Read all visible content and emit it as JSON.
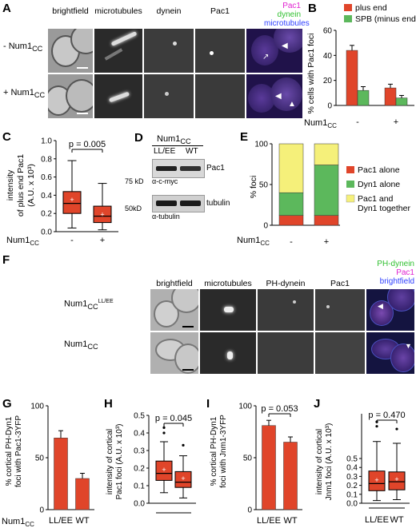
{
  "panelA": {
    "label": "A",
    "columns": [
      "brightfield",
      "microtubules",
      "dynein",
      "Pac1"
    ],
    "merge_labels": [
      "Pac1",
      "dynein",
      "microtubules"
    ],
    "rows": [
      "- Num1",
      "+ Num1"
    ],
    "row_sub": "CC",
    "colors": {
      "pac1": "#e020d0",
      "dynein": "#30c030",
      "microtubules": "#3040ff"
    }
  },
  "panelB": {
    "label": "B",
    "legend": [
      "plus end",
      "SPB (minus end)"
    ],
    "ylabel": "% cells with Pac1 foci",
    "xvar": "Num1",
    "xvar_sub": "CC",
    "xticks": [
      "-",
      "+"
    ],
    "yticks": [
      "0",
      "20",
      "40",
      "60"
    ]
  },
  "panelC": {
    "label": "C",
    "ylabel_lines": [
      "intensity",
      "of plus end Pac1",
      "(A.U. x 10³)"
    ],
    "pvalue": "p = 0.005",
    "xvar": "Num1",
    "xvar_sub": "CC",
    "xticks": [
      "-",
      "+"
    ],
    "yticks": [
      "0.0",
      "0.2",
      "0.4",
      "0.6",
      "0.8",
      "1.0"
    ]
  },
  "panelD": {
    "label": "D",
    "header": "Num1",
    "header_sub": "CC",
    "lanes": [
      "LL/EE",
      "WT"
    ],
    "bands": [
      "Pac1",
      "tubulin"
    ],
    "markers": [
      "75 kD",
      "50kD"
    ],
    "antibodies": [
      "α-c-myc",
      "α-tubulin"
    ]
  },
  "panelE": {
    "label": "E",
    "ylabel": "% foci",
    "yticks": [
      "0",
      "50",
      "100"
    ],
    "legend": [
      "Pac1 alone",
      "Dyn1 alone",
      "Pac1 and",
      "Dyn1 together"
    ],
    "xvar": "Num1",
    "xvar_sub": "CC",
    "xticks": [
      "-",
      "+"
    ]
  },
  "panelF": {
    "label": "F",
    "columns": [
      "brightfield",
      "microtubules",
      "PH-dynein",
      "Pac1"
    ],
    "merge_labels": [
      "PH-dynein",
      "Pac1",
      "brightfield"
    ],
    "rows": [
      "Num1",
      "Num1"
    ],
    "row_sub": "CC",
    "row_sup": [
      "LL/EE",
      ""
    ]
  },
  "panelG": {
    "label": "G",
    "ylabel_lines": [
      "% cortical PH-Dyn1",
      "foci with Pac1-3YFP"
    ],
    "yticks": [
      "0",
      "50",
      "100"
    ],
    "xvar": "Num1",
    "xvar_sub": "CC",
    "xticks": [
      "LL/EE",
      "WT"
    ]
  },
  "panelH": {
    "label": "H",
    "ylabel_lines": [
      "intensity of cortical",
      "Pac1 foci (A.U. x 10³)"
    ],
    "pvalue": "p = 0.045",
    "yticks": [
      "0.0",
      "0.1",
      "0.2",
      "0.3",
      "0.4",
      "0.5"
    ]
  },
  "panelI": {
    "label": "I",
    "ylabel_lines": [
      "% cortical PH-Dyn1",
      "foci with Jnm1-3YFP"
    ],
    "pvalue": "p = 0.053",
    "yticks": [
      "0",
      "50",
      "100"
    ],
    "xticks": [
      "LL/EE",
      "WT"
    ]
  },
  "panelJ": {
    "label": "J",
    "ylabel_lines": [
      "intensity of cortical",
      "Jnm1 foci (A.U. x 10³)"
    ],
    "pvalue": "p = 0.470",
    "yticks": [
      "0.0",
      "0.1",
      "0.2",
      "0.3",
      "0.4",
      "0.5"
    ],
    "xticks": [
      "LL/EE",
      "WT"
    ]
  },
  "colors": {
    "red": "#e0452a",
    "green": "#5cb85c",
    "yellow": "#f5f07a"
  },
  "chart_data": [
    {
      "panel": "B",
      "type": "bar",
      "categories": [
        "-",
        "+"
      ],
      "series": [
        {
          "name": "plus end",
          "values": [
            44,
            14
          ],
          "errors": [
            4,
            3
          ]
        },
        {
          "name": "SPB (minus end)",
          "values": [
            12,
            6
          ],
          "errors": [
            3,
            2
          ]
        }
      ],
      "ylim": [
        0,
        60
      ]
    },
    {
      "panel": "C",
      "type": "box",
      "categories": [
        "-",
        "+"
      ],
      "boxes": [
        {
          "min": 0.04,
          "q1": 0.2,
          "median": 0.31,
          "q3": 0.44,
          "max": 0.78,
          "mean": 0.35
        },
        {
          "min": 0.02,
          "q1": 0.1,
          "median": 0.17,
          "q3": 0.28,
          "max": 0.53,
          "mean": 0.19
        }
      ],
      "ylim": [
        0,
        1.0
      ]
    },
    {
      "panel": "E",
      "type": "bar",
      "stacked": true,
      "categories": [
        "-",
        "+"
      ],
      "series": [
        {
          "name": "Pac1 alone",
          "values": [
            12,
            12
          ]
        },
        {
          "name": "Dyn1 alone",
          "values": [
            28,
            62
          ]
        },
        {
          "name": "Pac1 and Dyn1 together",
          "values": [
            60,
            26
          ]
        }
      ],
      "ylim": [
        0,
        100
      ]
    },
    {
      "panel": "G",
      "type": "bar",
      "categories": [
        "LL/EE",
        "WT"
      ],
      "values": [
        69,
        30
      ],
      "errors": [
        7,
        5
      ],
      "ylim": [
        0,
        100
      ]
    },
    {
      "panel": "H",
      "type": "box",
      "categories": [
        "LL/EE",
        "WT"
      ],
      "boxes": [
        {
          "min": 0.06,
          "q1": 0.13,
          "median": 0.17,
          "q3": 0.24,
          "max": 0.35,
          "mean": 0.19,
          "outliers": [
            0.4,
            0.43
          ]
        },
        {
          "min": 0.03,
          "q1": 0.09,
          "median": 0.12,
          "q3": 0.18,
          "max": 0.27,
          "mean": 0.14,
          "outliers": [
            0.33
          ]
        }
      ],
      "ylim": [
        0,
        0.5
      ]
    },
    {
      "panel": "I",
      "type": "bar",
      "categories": [
        "LL/EE",
        "WT"
      ],
      "values": [
        81,
        65
      ],
      "errors": [
        5,
        5
      ],
      "ylim": [
        0,
        100
      ]
    },
    {
      "panel": "J",
      "type": "box",
      "categories": [
        "LL/EE",
        "WT"
      ],
      "boxes": [
        {
          "min": 0.03,
          "q1": 0.14,
          "median": 0.22,
          "q3": 0.36,
          "max": 0.69,
          "mean": 0.26,
          "outliers": [
            0.86,
            0.91
          ]
        },
        {
          "min": 0.04,
          "q1": 0.15,
          "median": 0.24,
          "q3": 0.35,
          "max": 0.67,
          "mean": 0.27,
          "outliers": [
            0.83
          ]
        }
      ],
      "ylim": [
        0,
        1.0
      ]
    }
  ]
}
